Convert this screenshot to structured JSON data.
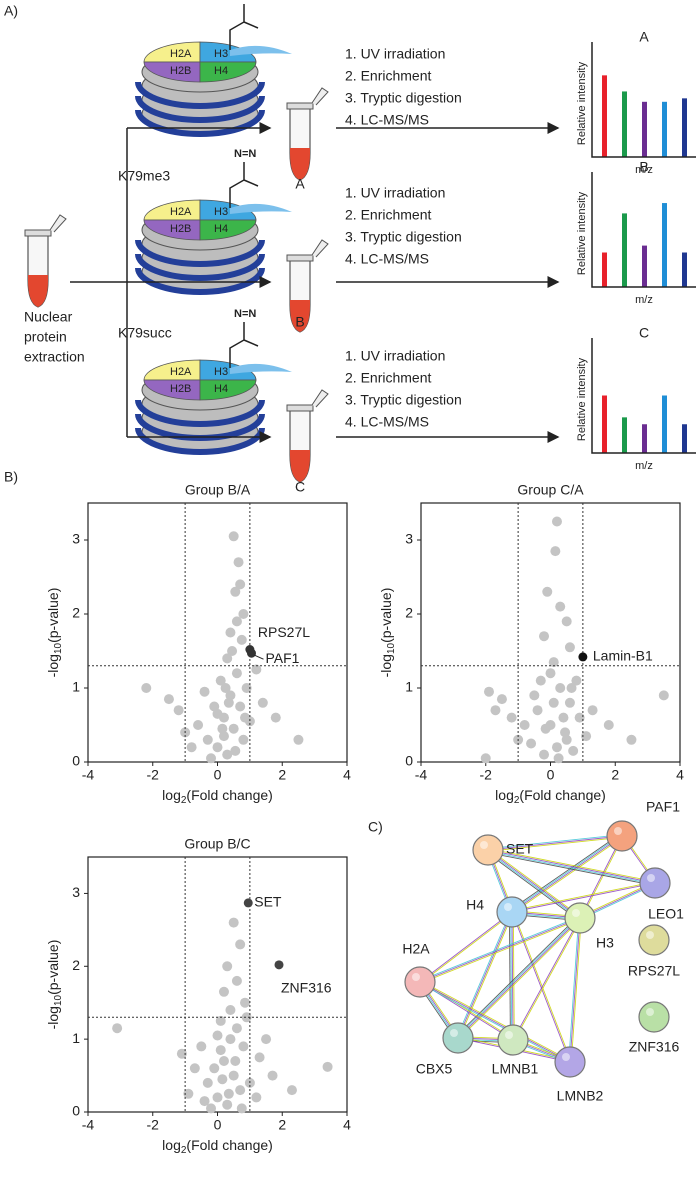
{
  "panel_labels": [
    "A)",
    "B)",
    "C)"
  ],
  "panel_a": {
    "histones": [
      "H2A",
      "H3",
      "H2B",
      "H4"
    ],
    "diazirine": "N=N",
    "modifications": [
      "K79me3",
      "K79succ"
    ],
    "steps": [
      "1. UV irradiation",
      "2. Enrichment",
      "3. Tryptic digestion",
      "4. LC-MS/MS"
    ],
    "tubes": [
      "A",
      "B",
      "C"
    ],
    "source": [
      "Nuclear",
      "protein",
      "extraction"
    ]
  },
  "chart_data": [
    {
      "type": "bar",
      "title": "A",
      "ylabel": "Relative intensity",
      "xlabel": "m/z",
      "ylim": [
        0,
        1
      ],
      "values": [
        0.71,
        0.57,
        0.48,
        0.48,
        0.51
      ],
      "colors": [
        "#e8212b",
        "#1b9a4b",
        "#6a2d91",
        "#1f8ed6",
        "#1f3790"
      ]
    },
    {
      "type": "bar",
      "title": "B",
      "ylabel": "Relative intensity",
      "xlabel": "m/z",
      "ylim": [
        0,
        1
      ],
      "values": [
        0.3,
        0.64,
        0.36,
        0.73,
        0.3
      ],
      "colors": [
        "#e8212b",
        "#1b9a4b",
        "#6a2d91",
        "#1f8ed6",
        "#1f3790"
      ]
    },
    {
      "type": "bar",
      "title": "C",
      "ylabel": "Relative intensity",
      "xlabel": "m/z",
      "ylim": [
        0,
        1
      ],
      "values": [
        0.5,
        0.31,
        0.25,
        0.5,
        0.25
      ],
      "colors": [
        "#e8212b",
        "#1b9a4b",
        "#6a2d91",
        "#1f8ed6",
        "#1f3790"
      ]
    },
    {
      "type": "scatter",
      "title": "Group B/A",
      "xlabel": [
        "log",
        "2",
        "(Fold change)"
      ],
      "ylabel": [
        "-log",
        "10",
        "(p-value)"
      ],
      "xlim": [
        -4,
        4
      ],
      "ylim": [
        0,
        3.5
      ],
      "xticks": [
        -4,
        -2,
        0,
        2,
        4
      ],
      "yticks": [
        0,
        1,
        2,
        3
      ],
      "vlines": [
        -1,
        1
      ],
      "hline": 1.3,
      "color": "#c4c4c4",
      "x": [
        0.5,
        0.65,
        0.7,
        0.55,
        0.8,
        0.6,
        0.4,
        0.75,
        0.3,
        0.45,
        -2.2,
        -1.5,
        -1.2,
        -0.6,
        -0.3,
        0,
        0.2,
        0.4,
        0.1,
        0.6,
        0.9,
        1.4,
        1.8,
        2.5,
        0.3,
        -0.2,
        0.5,
        0.7,
        -0.8,
        -1,
        1.2,
        0.2,
        0.8,
        0,
        -0.4,
        1,
        0.35,
        0.15,
        -0.1,
        0.55,
        0.85,
        0.25
      ],
      "y": [
        3.05,
        2.7,
        2.4,
        2.3,
        2,
        1.9,
        1.75,
        1.65,
        1.4,
        1.5,
        1,
        0.85,
        0.7,
        0.5,
        0.3,
        0.2,
        0.6,
        0.9,
        1.1,
        1.2,
        1,
        0.8,
        0.6,
        0.3,
        0.1,
        0.05,
        0.45,
        0.75,
        0.2,
        0.4,
        1.25,
        0.35,
        0.3,
        0.65,
        0.95,
        0.55,
        0.8,
        0.45,
        0.75,
        0.15,
        0.6,
        1.0
      ],
      "highlights": [
        {
          "label": "RPS27L",
          "x": 1.0,
          "y": 1.52,
          "color": "#333333"
        },
        {
          "label": "PAF1",
          "x": 1.05,
          "y": 1.47,
          "color": "#333333"
        }
      ]
    },
    {
      "type": "scatter",
      "title": "Group C/A",
      "xlabel": [
        "log",
        "2",
        "(Fold change)"
      ],
      "ylabel": [
        "-log",
        "10",
        "(p-value)"
      ],
      "xlim": [
        -4,
        4
      ],
      "ylim": [
        0,
        3.5
      ],
      "xticks": [
        -4,
        -2,
        0,
        2,
        4
      ],
      "yticks": [
        0,
        1,
        2,
        3
      ],
      "vlines": [
        -1,
        1
      ],
      "hline": 1.3,
      "color": "#c4c4c4",
      "x": [
        0.2,
        0.15,
        -0.1,
        0.3,
        0.5,
        -0.2,
        0.6,
        0.1,
        -1.9,
        -1.5,
        -1.7,
        -1.2,
        -0.8,
        -0.5,
        -0.3,
        0,
        0.3,
        0.6,
        0.9,
        1.3,
        1.8,
        3.5,
        2.5,
        0.2,
        -0.2,
        0.5,
        0.8,
        -1,
        0,
        0.4,
        -0.6,
        0.7,
        1.1,
        -0.4,
        0.1,
        -2,
        0.45,
        -0.15,
        0.25,
        0.65
      ],
      "y": [
        3.25,
        2.85,
        2.3,
        2.1,
        1.9,
        1.7,
        1.55,
        1.35,
        0.95,
        0.85,
        0.7,
        0.6,
        0.5,
        0.9,
        1.1,
        1.2,
        1,
        0.8,
        0.6,
        0.7,
        0.5,
        0.9,
        0.3,
        0.2,
        0.1,
        0.3,
        1.1,
        0.3,
        0.5,
        0.6,
        0.25,
        0.15,
        0.35,
        0.7,
        0.8,
        0.05,
        0.4,
        0.45,
        0.05,
        1.0
      ],
      "highlights": [
        {
          "label": "Lamin-B1",
          "x": 1.0,
          "y": 1.42,
          "color": "#111111"
        }
      ]
    },
    {
      "type": "scatter",
      "title": "Group B/C",
      "xlabel": [
        "log",
        "2",
        "(Fold change)"
      ],
      "ylabel": [
        "-log",
        "10",
        "(p-value)"
      ],
      "xlim": [
        -4,
        4
      ],
      "ylim": [
        0,
        3.5
      ],
      "xticks": [
        -4,
        -2,
        0,
        2,
        4
      ],
      "yticks": [
        0,
        1,
        2,
        3
      ],
      "vlines": [
        -1,
        1
      ],
      "hline": 1.3,
      "color": "#c4c4c4",
      "x": [
        0.5,
        0.7,
        0.3,
        0.6,
        0.2,
        0.85,
        0.4,
        0.1,
        -3.1,
        -1.1,
        -0.7,
        -0.3,
        0,
        0.2,
        0.4,
        0.6,
        0.8,
        1.3,
        1.7,
        3.4,
        2.3,
        0.3,
        -0.2,
        0.5,
        0.7,
        -0.5,
        1,
        0.1,
        -0.9,
        1.5,
        0.9,
        0,
        0.35,
        -0.4,
        1.2,
        0.15,
        0.55,
        -0.1,
        0.75
      ],
      "y": [
        2.6,
        2.3,
        2,
        1.8,
        1.65,
        1.5,
        1.4,
        1.25,
        1.15,
        0.8,
        0.6,
        0.4,
        0.2,
        0.7,
        1,
        1.15,
        0.9,
        0.75,
        0.5,
        0.62,
        0.3,
        0.1,
        0.05,
        0.5,
        0.3,
        0.9,
        0.4,
        0.85,
        0.25,
        1,
        1.3,
        1.05,
        0.25,
        0.15,
        0.2,
        0.45,
        0.7,
        0.6,
        0.05
      ],
      "highlights": [
        {
          "label": "SET",
          "x": 0.95,
          "y": 2.87,
          "color": "#444444"
        },
        {
          "label": "ZNF316",
          "x": 1.9,
          "y": 2.02,
          "color": "#444444"
        }
      ]
    }
  ],
  "network": {
    "nodes": [
      {
        "label": "PAF1",
        "color": "#f4a27e"
      },
      {
        "label": "SET",
        "color": "#fbd1a8"
      },
      {
        "label": "LEO1",
        "color": "#a9a6e6"
      },
      {
        "label": "H4",
        "color": "#a9d6f4"
      },
      {
        "label": "H3",
        "color": "#dcf1b6"
      },
      {
        "label": "H2A",
        "color": "#f4b8b8"
      },
      {
        "label": "RPS27L",
        "color": "#dedc9c"
      },
      {
        "label": "ZNF316",
        "color": "#b9e0a6"
      },
      {
        "label": "CBX5",
        "color": "#a8d8cc"
      },
      {
        "label": "LMNB1",
        "color": "#cfe8c0"
      },
      {
        "label": "LMNB2",
        "color": "#b3a6e6"
      }
    ],
    "edges": [
      [
        0,
        2
      ],
      [
        0,
        1
      ],
      [
        0,
        3
      ],
      [
        0,
        4
      ],
      [
        1,
        3
      ],
      [
        1,
        4
      ],
      [
        3,
        2
      ],
      [
        4,
        2
      ],
      [
        3,
        4
      ],
      [
        3,
        5
      ],
      [
        3,
        8
      ],
      [
        3,
        9
      ],
      [
        3,
        10
      ],
      [
        4,
        5
      ],
      [
        4,
        8
      ],
      [
        4,
        9
      ],
      [
        4,
        10
      ],
      [
        5,
        8
      ],
      [
        5,
        9
      ],
      [
        5,
        10
      ],
      [
        8,
        9
      ],
      [
        8,
        10
      ],
      [
        9,
        10
      ],
      [
        1,
        2
      ]
    ]
  }
}
